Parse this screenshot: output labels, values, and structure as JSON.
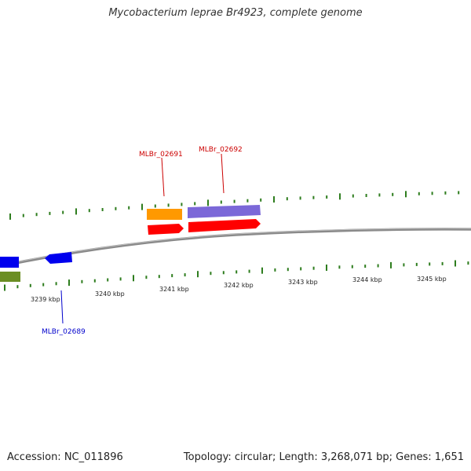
{
  "title": "Mycobacterium leprae Br4923, complete genome",
  "footer": {
    "accession": "Accession: NC_011896",
    "summary": "Topology: circular; Length: 3,268,071 bp; Genes: 1,651"
  },
  "colors": {
    "tick": "#2e7d1e",
    "backbone": "#8a8a8a",
    "gene_red": "#ff0000",
    "gene_orange": "#ff9900",
    "gene_purple": "#7b68d8",
    "gene_blue": "#0000ee",
    "gene_olive": "#6b8e23",
    "label_red": "#cc0000",
    "label_blue": "#0000cc"
  },
  "scale_labels": [
    "3239 kbp",
    "3240 kbp",
    "3241 kbp",
    "3242 kbp",
    "3243 kbp",
    "3244 kbp",
    "3245 kbp"
  ],
  "gene_labels": [
    {
      "text": "MLBr_02691",
      "color": "#cc0000"
    },
    {
      "text": "MLBr_02692",
      "color": "#cc0000"
    },
    {
      "text": "MLBr_02689",
      "color": "#0000cc"
    }
  ]
}
